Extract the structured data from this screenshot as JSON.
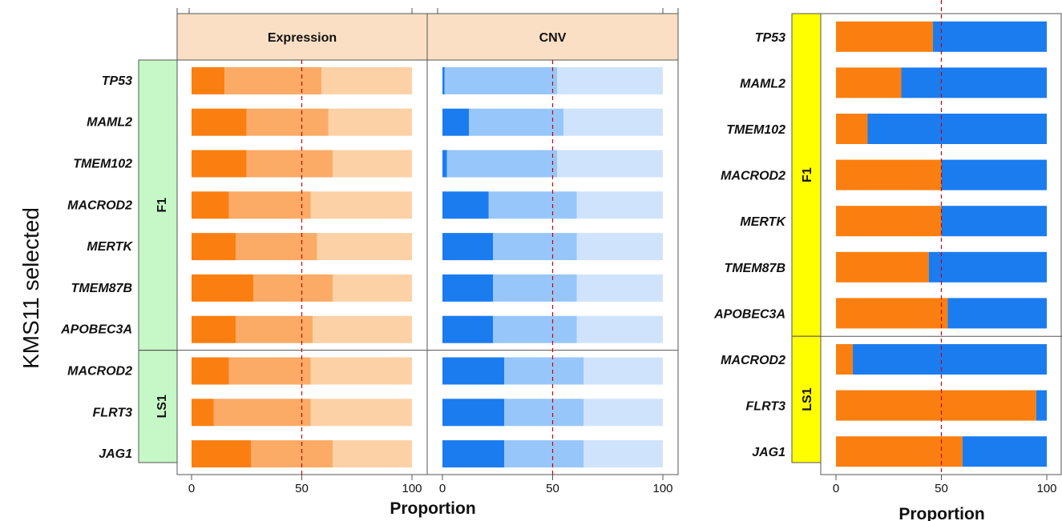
{
  "side_label": "KMS11 selected",
  "colors": {
    "expression": [
      "#fb7f10",
      "#fbab66",
      "#fdd1a6"
    ],
    "cnv": [
      "#1b7cf0",
      "#97c6fa",
      "#cfe4fc"
    ],
    "right": [
      "#fb7f10",
      "#1b7cf0"
    ],
    "strip_bg": "#fbdfc4",
    "group_left_bg": "#c6f7c6",
    "group_right_bg": "#ffff00",
    "refline": "#cc0000"
  },
  "chart_data": [
    {
      "type": "bar",
      "orientation": "horizontal",
      "stacked": true,
      "panels": [
        "Expression",
        "CNV"
      ],
      "groups": [
        {
          "name": "F1",
          "genes": [
            "TP53",
            "MAML2",
            "TMEM102",
            "MACROD2",
            "MERTK",
            "TMEM87B",
            "APOBEC3A"
          ]
        },
        {
          "name": "LS1",
          "genes": [
            "MACROD2",
            "FLRT3",
            "JAG1"
          ]
        }
      ],
      "xlabel": "Proportion",
      "xlim": [
        0,
        100
      ],
      "xticks": [
        0,
        50,
        100
      ],
      "reference_line": 50,
      "series": {
        "Expression": [
          [
            15,
            44,
            41
          ],
          [
            25,
            37,
            38
          ],
          [
            25,
            39,
            36
          ],
          [
            17,
            37,
            46
          ],
          [
            20,
            37,
            43
          ],
          [
            28,
            36,
            36
          ],
          [
            20,
            35,
            45
          ],
          [
            17,
            37,
            46
          ],
          [
            10,
            44,
            46
          ],
          [
            27,
            37,
            36
          ]
        ],
        "CNV": [
          [
            1,
            51,
            48
          ],
          [
            12,
            43,
            45
          ],
          [
            2,
            50,
            48
          ],
          [
            21,
            40,
            39
          ],
          [
            23,
            38,
            39
          ],
          [
            23,
            38,
            39
          ],
          [
            23,
            38,
            39
          ],
          [
            28,
            36,
            36
          ],
          [
            28,
            36,
            36
          ],
          [
            28,
            36,
            36
          ]
        ]
      }
    },
    {
      "type": "bar",
      "orientation": "horizontal",
      "stacked": true,
      "groups": [
        {
          "name": "F1",
          "genes": [
            "TP53",
            "MAML2",
            "TMEM102",
            "MACROD2",
            "MERTK",
            "TMEM87B",
            "APOBEC3A"
          ]
        },
        {
          "name": "LS1",
          "genes": [
            "MACROD2",
            "FLRT3",
            "JAG1"
          ]
        }
      ],
      "xlabel": "Proportion",
      "xlim": [
        0,
        100
      ],
      "xticks": [
        0,
        50,
        100
      ],
      "reference_line": 50,
      "series": [
        [
          46,
          54
        ],
        [
          31,
          69
        ],
        [
          15,
          85
        ],
        [
          50,
          50
        ],
        [
          50,
          50
        ],
        [
          44,
          56
        ],
        [
          53,
          47
        ],
        [
          8,
          92
        ],
        [
          95,
          5
        ],
        [
          60,
          40
        ]
      ]
    }
  ]
}
